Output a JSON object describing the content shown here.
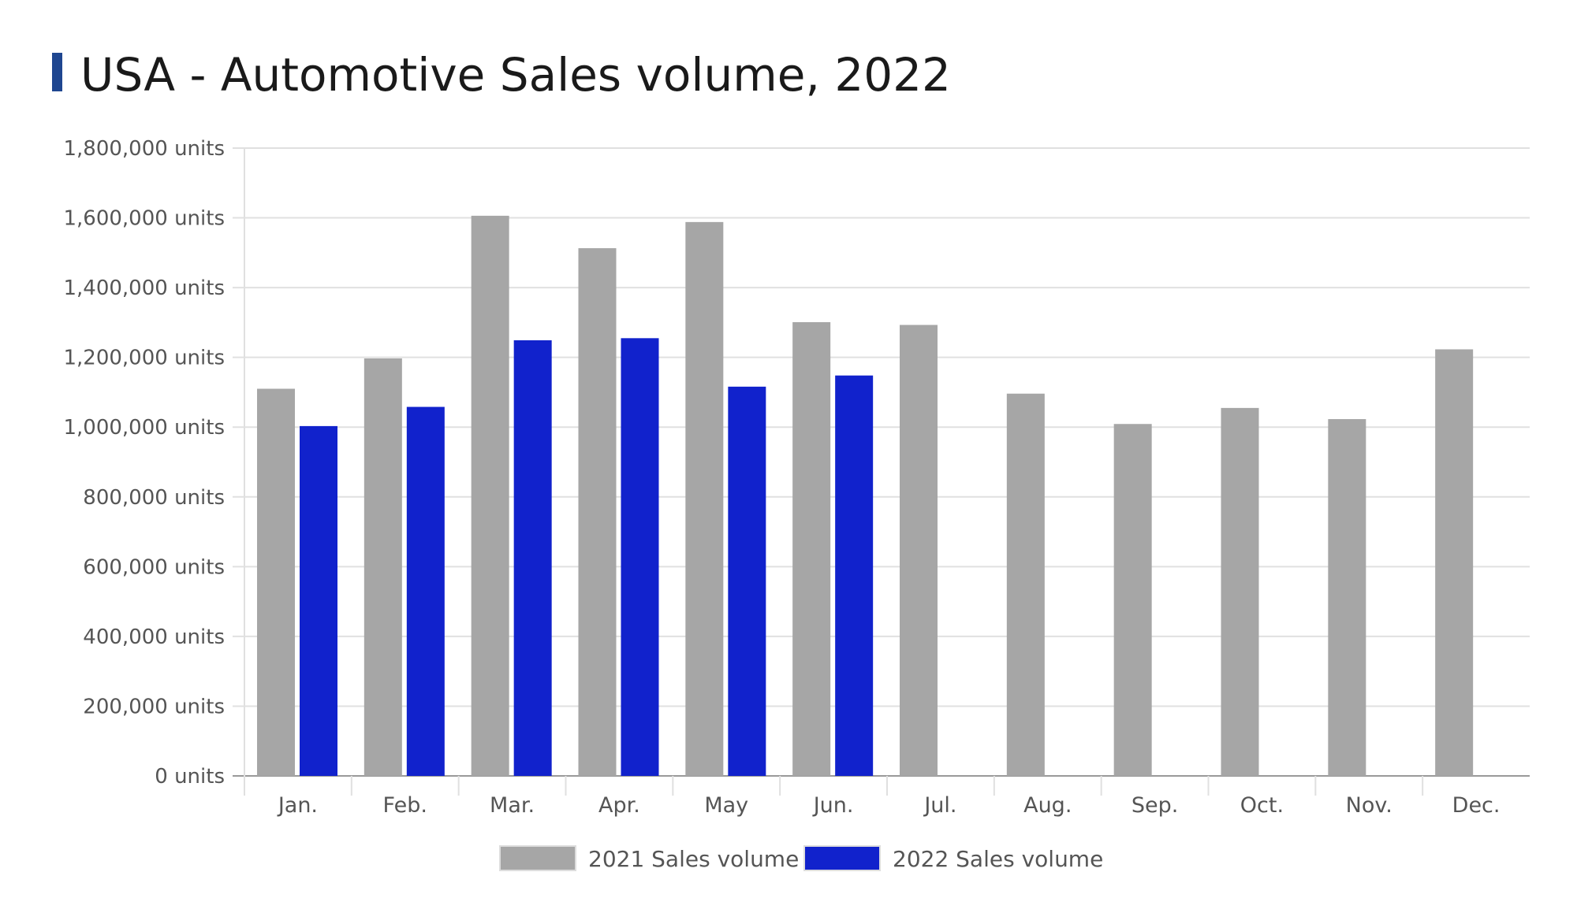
{
  "chart_data": {
    "type": "bar",
    "title": "USA - Automotive Sales volume, 2022",
    "xlabel": "",
    "ylabel": "",
    "ylim": [
      0,
      1800000
    ],
    "y_ticks": [
      0,
      200000,
      400000,
      600000,
      800000,
      1000000,
      1200000,
      1400000,
      1600000,
      1800000
    ],
    "y_tick_labels": [
      "0 units",
      "200,000 units",
      "400,000 units",
      "600,000 units",
      "800,000 units",
      "1,000,000 units",
      "1,200,000 units",
      "1,400,000 units",
      "1,600,000 units",
      "1,800,000 units"
    ],
    "grid": true,
    "legend_position": "bottom",
    "categories": [
      "Jan.",
      "Feb.",
      "Mar.",
      "Apr.",
      "May",
      "Jun.",
      "Jul.",
      "Aug.",
      "Sep.",
      "Oct.",
      "Nov.",
      "Dec."
    ],
    "series": [
      {
        "name": "2021 Sales volume",
        "color": "#a6a6a6",
        "values": [
          1110000,
          1197000,
          1606000,
          1513000,
          1588000,
          1301000,
          1293000,
          1096000,
          1009000,
          1055000,
          1023000,
          1223000
        ]
      },
      {
        "name": "2022 Sales volume",
        "color": "#1122cc",
        "values": [
          1003000,
          1058000,
          1249000,
          1255000,
          1116000,
          1148000,
          null,
          null,
          null,
          null,
          null,
          null
        ]
      }
    ],
    "title_accent_color": "#1f4690"
  }
}
